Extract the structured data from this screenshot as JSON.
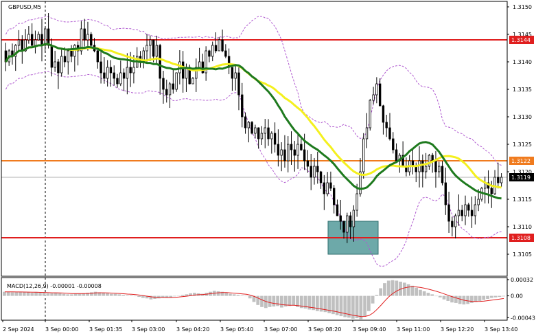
{
  "chart_data": [
    {
      "type": "candlestick",
      "title": "GBPUSD,M5",
      "price_axis": {
        "ylim": [
          1.3101,
          1.3151
        ],
        "ticks": [
          "1.3150",
          "1.3145",
          "1.3140",
          "1.3135",
          "1.3130",
          "1.3125",
          "1.3120",
          "1.3115",
          "1.3110",
          "1.3105"
        ]
      },
      "time_axis": {
        "labels": [
          "2 Sep 2024",
          "3 Sep 00:00",
          "3 Sep 01:35",
          "3 Sep 03:00",
          "3 Sep 04:20",
          "3 Sep 05:40",
          "3 Sep 07:00",
          "3 Sep 08:20",
          "3 Sep 09:40",
          "3 Sep 11:00",
          "3 Sep 12:20",
          "3 Sep 13:40"
        ]
      },
      "horizontal_levels": [
        {
          "label": "1.3144",
          "value": 1.3144,
          "color": "#e01e1e"
        },
        {
          "label": "1.3122",
          "value": 1.3122,
          "color": "#f07b1e"
        },
        {
          "label": "1.3108",
          "value": 1.3108,
          "color": "#e01e1e"
        }
      ],
      "current_price": {
        "label": "1.3119",
        "value": 1.3119
      },
      "period_separator_after": "3 Sep 00:00",
      "highlight_zone": {
        "from_value": 1.3111,
        "to_value": 1.3105,
        "color": "#3c8c8c"
      },
      "moving_averages": [
        {
          "color": "#f4f01e",
          "role": "slow MA"
        },
        {
          "color": "#1e7a1e",
          "role": "fast MA"
        }
      ],
      "bollinger_color": "#b05ad0",
      "candles_close": [
        1.314,
        1.3142,
        1.3141,
        1.3143,
        1.3144,
        1.3142,
        1.3144,
        1.3145,
        1.3143,
        1.3144,
        1.3145,
        1.3143,
        1.3146,
        1.3143,
        1.3139,
        1.314,
        1.3138,
        1.3141,
        1.314,
        1.3142,
        1.3141,
        1.3143,
        1.3142,
        1.3146,
        1.3144,
        1.3145,
        1.3143,
        1.3142,
        1.314,
        1.3138,
        1.3137,
        1.3139,
        1.3138,
        1.3137,
        1.3136,
        1.3138,
        1.3137,
        1.3139,
        1.3138,
        1.3139,
        1.3141,
        1.314,
        1.3142,
        1.3143,
        1.3144,
        1.3141,
        1.3143,
        1.3137,
        1.3135,
        1.3134,
        1.3136,
        1.3135,
        1.3138,
        1.314,
        1.3137,
        1.3139,
        1.3136,
        1.3137,
        1.3139,
        1.314,
        1.3138,
        1.3142,
        1.3141,
        1.3143,
        1.3142,
        1.3144,
        1.3142,
        1.3141,
        1.3139,
        1.3137,
        1.3138,
        1.3134,
        1.313,
        1.3128,
        1.3129,
        1.3127,
        1.3128,
        1.3126,
        1.3127,
        1.3128,
        1.3126,
        1.3127,
        1.3125,
        1.3123,
        1.3124,
        1.3122,
        1.3125,
        1.3124,
        1.3123,
        1.3125,
        1.3124,
        1.3122,
        1.3121,
        1.3119,
        1.3121,
        1.312,
        1.3118,
        1.3116,
        1.3118,
        1.3117,
        1.3114,
        1.3112,
        1.3111,
        1.3109,
        1.3112,
        1.311,
        1.3113,
        1.3116,
        1.312,
        1.3126,
        1.3128,
        1.3133,
        1.3134,
        1.3136,
        1.3132,
        1.3129,
        1.3128,
        1.3126,
        1.3124,
        1.3122,
        1.3123,
        1.3121,
        1.312,
        1.3122,
        1.3121,
        1.312,
        1.3122,
        1.312,
        1.3121,
        1.3123,
        1.3122,
        1.312,
        1.3121,
        1.3118,
        1.3114,
        1.3111,
        1.311,
        1.3112,
        1.3113,
        1.3112,
        1.3114,
        1.3113,
        1.3112,
        1.3114,
        1.3115,
        1.3117,
        1.3118,
        1.3117,
        1.3116,
        1.3119,
        1.3118,
        1.3119
      ],
      "candle_range": 0.0006
    },
    {
      "type": "bar",
      "title": "MACD(12,26,9) -0.00001 -0.00008",
      "ylim": [
        -0.00048,
        0.00036
      ],
      "ticks": [
        "0.00032",
        "0.00",
        "-0.00043"
      ],
      "histogram": [
        8e-05,
        8e-05,
        7e-05,
        7e-05,
        8e-05,
        7e-05,
        7e-05,
        6e-05,
        7e-05,
        6e-05,
        6e-05,
        5e-05,
        5e-05,
        6e-05,
        5e-05,
        4e-05,
        3e-05,
        3e-05,
        4e-05,
        4e-05,
        5e-05,
        6e-05,
        7e-05,
        8e-05,
        7e-05,
        6e-05,
        5e-05,
        4e-05,
        4e-05,
        3e-05,
        2e-05,
        1e-05,
        1e-05,
        0.0,
        -2e-05,
        -4e-05,
        -5e-05,
        -7e-05,
        -6e-05,
        -5e-05,
        -4e-05,
        -4e-05,
        -3e-05,
        -1e-05,
        0.0,
        2e-05,
        3e-05,
        5e-05,
        6e-05,
        5e-05,
        4e-05,
        6e-05,
        8e-05,
        0.0001,
        9e-05,
        8e-05,
        6e-05,
        4e-05,
        3e-05,
        2e-05,
        1e-05,
        0.0,
        -5e-05,
        -0.00012,
        -0.00018,
        -0.00022,
        -0.00024,
        -0.00022,
        -0.00021,
        -0.0002,
        -0.00023,
        -0.00021,
        -0.0002,
        -0.00019,
        -0.00022,
        -0.00024,
        -0.00025,
        -0.00027,
        -0.00028,
        -0.0003,
        -0.00031,
        -0.00032,
        -0.00034,
        -0.00036,
        -0.00038,
        -0.0004,
        -0.00042,
        -0.00043,
        -0.00045,
        -0.00044,
        -0.00046,
        -0.0004,
        -0.0003,
        -0.00015,
        2e-05,
        0.00015,
        0.00025,
        0.0003,
        0.00031,
        0.0003,
        0.00028,
        0.00026,
        0.00023,
        0.0002,
        0.00016,
        0.00012,
        9e-05,
        6e-05,
        3e-05,
        0.0,
        -3e-05,
        -7e-05,
        -0.0001,
        -0.00013,
        -0.00014,
        -0.00016,
        -0.00017,
        -0.00016,
        -0.00014,
        -0.00012,
        -0.0001,
        -8e-05,
        -6e-05,
        -4e-05,
        -3e-05,
        -2e-05,
        -1e-05
      ],
      "signal_color": "#e01e1e",
      "histogram_color": "#c0c0c0"
    }
  ]
}
